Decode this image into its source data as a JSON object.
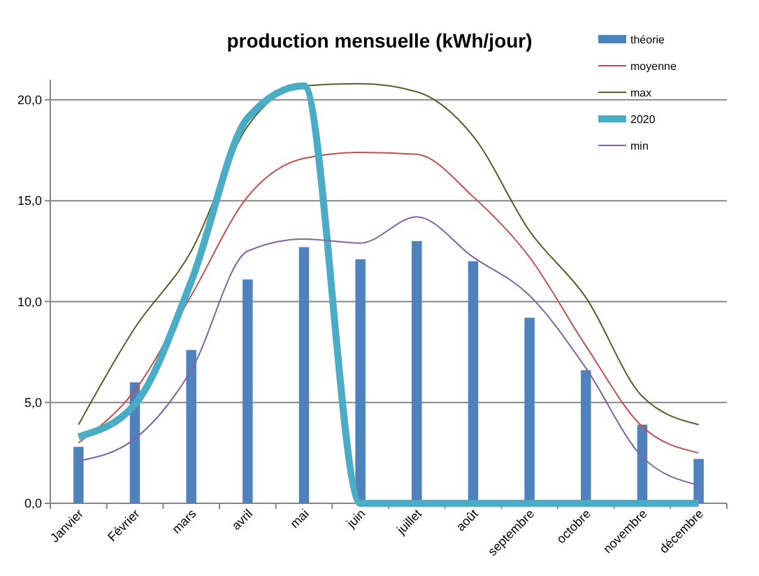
{
  "chart_data": {
    "type": "bar",
    "title": "production mensuelle (kWh/jour)",
    "categories": [
      "Janvier",
      "Février",
      "mars",
      "avril",
      "mai",
      "juin",
      "juillet",
      "août",
      "septembre",
      "octobre",
      "novembre",
      "décembre"
    ],
    "series": [
      {
        "name": "théorie",
        "color": "#4f81bd",
        "values": [
          2.8,
          6.0,
          7.6,
          11.1,
          12.7,
          12.1,
          13.0,
          12.0,
          9.2,
          6.6,
          3.9,
          2.2
        ]
      },
      {
        "name": "moyenne",
        "type": "line",
        "color": "#c0504d",
        "values": [
          3.0,
          5.6,
          10.3,
          15.2,
          17.1,
          17.4,
          17.3,
          15.2,
          12.2,
          7.8,
          3.8,
          2.5
        ]
      },
      {
        "name": "max",
        "type": "line",
        "color": "#4f6228",
        "values": [
          3.9,
          8.7,
          12.5,
          18.7,
          20.7,
          20.8,
          20.4,
          18.2,
          13.5,
          10.2,
          5.3,
          3.9
        ]
      },
      {
        "name": "2020",
        "type": "line",
        "color": "#4bacc6",
        "values": [
          3.3,
          4.9,
          11.0,
          19.1,
          20.7,
          0,
          0,
          0,
          0,
          0,
          0,
          0
        ]
      },
      {
        "name": "min",
        "type": "line",
        "color": "#8064a2",
        "values": [
          2.1,
          3.2,
          6.6,
          12.5,
          13.1,
          12.9,
          14.2,
          12.2,
          10.3,
          6.7,
          2.3,
          0.9
        ]
      }
    ],
    "ylim": [
      0,
      21
    ],
    "yticks": [
      {
        "value": 0,
        "label": "0,0"
      },
      {
        "value": 5,
        "label": "5,0"
      },
      {
        "value": 10,
        "label": "10,0"
      },
      {
        "value": 15,
        "label": "15,0"
      },
      {
        "value": 20,
        "label": "20,0"
      }
    ],
    "grid": "y",
    "legend": "top right"
  }
}
